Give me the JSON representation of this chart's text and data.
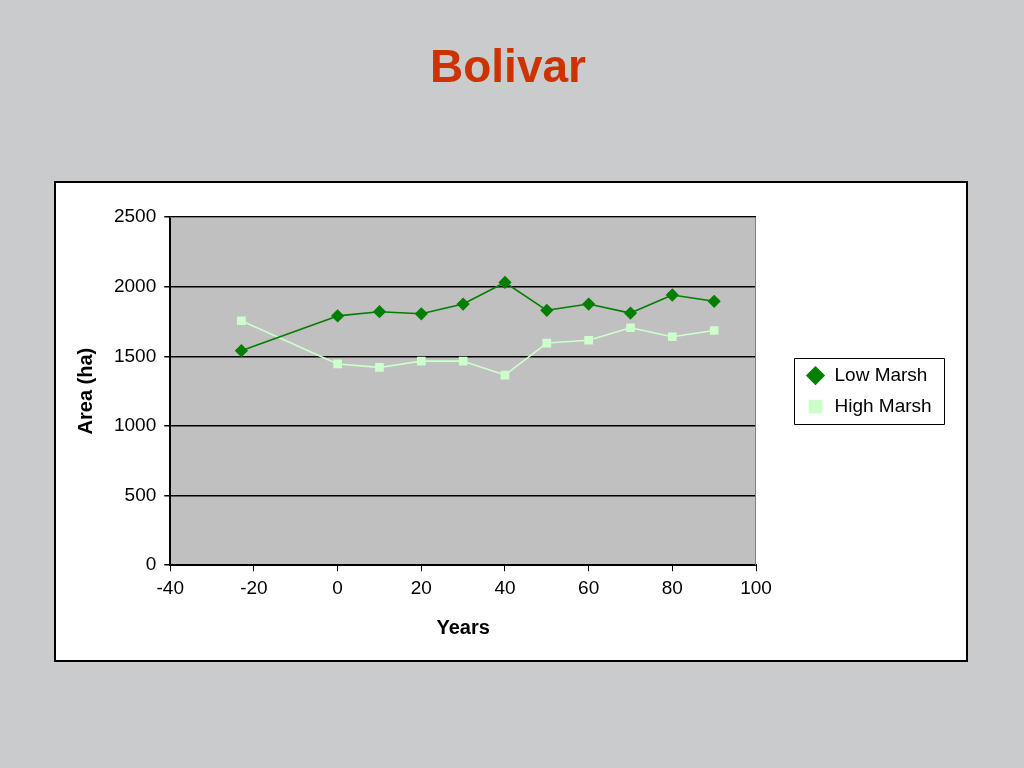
{
  "chart_data": {
    "type": "line",
    "title": "Bolivar",
    "xlabel": "Years",
    "ylabel": "Area (ha)",
    "xlim": [
      -40,
      100
    ],
    "xticks": [
      -40,
      -20,
      0,
      20,
      40,
      60,
      80,
      100
    ],
    "ylim": [
      0,
      2500
    ],
    "yticks": [
      0,
      500,
      1000,
      1500,
      2000,
      2500
    ],
    "grid": "y",
    "legend": "right",
    "line_style": "solid",
    "x": [
      -23,
      0,
      10,
      20,
      30,
      40,
      50,
      60,
      70,
      80,
      90
    ],
    "series": [
      {
        "name": "Low Marsh",
        "color": "#007f00",
        "marker": "diamond",
        "values": [
          1540,
          1790,
          1820,
          1805,
          1875,
          2030,
          1830,
          1875,
          1810,
          1940,
          1895
        ]
      },
      {
        "name": "High Marsh",
        "color": "#ccffcc",
        "marker": "square",
        "values": [
          1755,
          1445,
          1420,
          1465,
          1465,
          1365,
          1595,
          1615,
          1705,
          1640,
          1685
        ]
      }
    ]
  }
}
